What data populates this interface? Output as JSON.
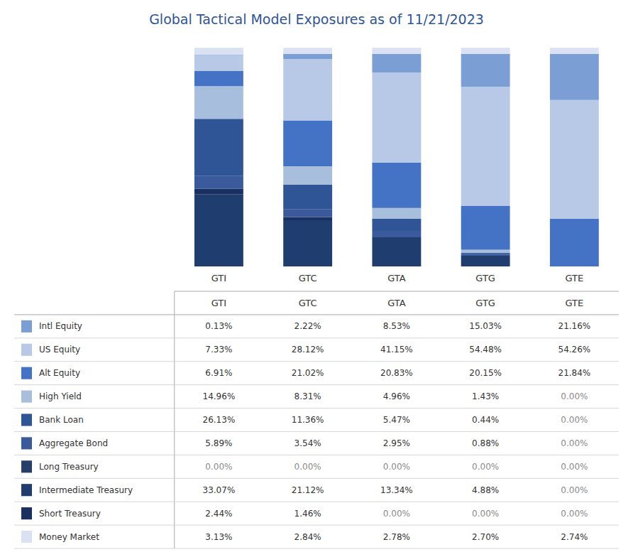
{
  "chart_data": [
    {
      "type": "bar",
      "title": "Global Tactical Model Exposures as of 11/21/2023",
      "stacked": true,
      "grid": false,
      "tick_labels": "x",
      "categories": [
        "GTI",
        "GTC",
        "GTA",
        "GTG",
        "GTE"
      ],
      "ylim": [
        0,
        104.0104
      ],
      "series": [
        {
          "name": "Intermediate Treasury",
          "color": "#1F3D6E",
          "values": [
            33.07,
            21.12,
            13.34,
            4.88,
            0
          ]
        },
        {
          "name": "Short Treasury",
          "color": "#1A3060",
          "values": [
            2.44,
            1.46,
            0,
            0,
            0
          ]
        },
        {
          "name": "Aggregate Bond",
          "color": "#3A5A9B",
          "values": [
            5.89,
            3.54,
            2.95,
            0.88,
            0
          ]
        },
        {
          "name": "Bank Loan",
          "color": "#2F5597",
          "values": [
            26.13,
            11.36,
            5.47,
            0.44,
            0
          ]
        },
        {
          "name": "High Yield",
          "color": "#A8BEDD",
          "values": [
            14.96,
            8.31,
            4.96,
            1.43,
            0
          ]
        },
        {
          "name": "Alt Equity",
          "color": "#4472C4",
          "values": [
            6.91,
            21.02,
            20.83,
            20.15,
            21.84
          ]
        },
        {
          "name": "US Equity",
          "color": "#B8C9E8",
          "values": [
            7.33,
            28.12,
            41.15,
            54.48,
            54.26
          ]
        },
        {
          "name": "Intl Equity",
          "color": "#7B9FD4",
          "values": [
            0.13,
            2.22,
            8.53,
            15.03,
            21.16
          ]
        },
        {
          "name": "Money Market",
          "color": "#D9E1F2",
          "values": [
            3.13,
            2.84,
            2.78,
            2.7,
            2.74
          ]
        }
      ]
    },
    {
      "type": "table",
      "categories": [
        "GTI",
        "GTC",
        "GTA",
        "GTG",
        "GTE"
      ],
      "series": [
        {
          "name": "Intl Equity",
          "color": "#7B9FD4",
          "values": [
            0.13,
            2.22,
            8.53,
            15.03,
            21.16
          ],
          "value_labels": [
            "0.13%",
            "2.22%",
            "8.53%",
            "15.03%",
            "21.16%"
          ]
        },
        {
          "name": "US Equity",
          "color": "#B8C9E8",
          "values": [
            7.33,
            28.12,
            41.15,
            54.48,
            54.26
          ],
          "value_labels": [
            "7.33%",
            "28.12%",
            "41.15%",
            "54.48%",
            "54.26%"
          ]
        },
        {
          "name": "Alt Equity",
          "color": "#4472C4",
          "values": [
            6.91,
            21.02,
            20.83,
            20.15,
            21.84
          ],
          "value_labels": [
            "6.91%",
            "21.02%",
            "20.83%",
            "20.15%",
            "21.84%"
          ]
        },
        {
          "name": "High Yield",
          "color": "#A8BEDD",
          "values": [
            14.96,
            8.31,
            4.96,
            1.43,
            0
          ],
          "value_labels": [
            "14.96%",
            "8.31%",
            "4.96%",
            "1.43%",
            "0.00%"
          ]
        },
        {
          "name": "Bank Loan",
          "color": "#2F5597",
          "values": [
            26.13,
            11.36,
            5.47,
            0.44,
            0
          ],
          "value_labels": [
            "26.13%",
            "11.36%",
            "5.47%",
            "0.44%",
            "0.00%"
          ]
        },
        {
          "name": "Aggregate Bond",
          "color": "#3A5A9B",
          "values": [
            5.89,
            3.54,
            2.95,
            0.88,
            0
          ],
          "value_labels": [
            "5.89%",
            "3.54%",
            "2.95%",
            "0.88%",
            "0.00%"
          ]
        },
        {
          "name": "Long Treasury",
          "color": "#263F6A",
          "values": [
            0,
            0,
            0,
            0,
            0
          ],
          "value_labels": [
            "0.00%",
            "0.00%",
            "0.00%",
            "0.00%",
            "0.00%"
          ]
        },
        {
          "name": "Intermediate Treasury",
          "color": "#1F3D6E",
          "values": [
            33.07,
            21.12,
            13.34,
            4.88,
            0
          ],
          "value_labels": [
            "33.07%",
            "21.12%",
            "13.34%",
            "4.88%",
            "0.00%"
          ]
        },
        {
          "name": "Short Treasury",
          "color": "#1A3060",
          "values": [
            2.44,
            1.46,
            0,
            0,
            0
          ],
          "value_labels": [
            "2.44%",
            "1.46%",
            "0.00%",
            "0.00%",
            "0.00%"
          ]
        },
        {
          "name": "Money Market",
          "color": "#D9E1F2",
          "values": [
            3.13,
            2.84,
            2.78,
            2.7,
            2.74
          ],
          "value_labels": [
            "3.13%",
            "2.84%",
            "2.78%",
            "2.70%",
            "2.74%"
          ]
        }
      ]
    }
  ]
}
